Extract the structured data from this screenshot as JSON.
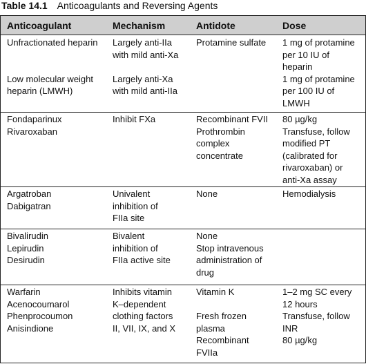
{
  "caption": {
    "number": "Table 14.1",
    "title": "Anticoagulants and Reversing Agents"
  },
  "headers": [
    "Anticoagulant",
    "Mechanism",
    "Antidote",
    "Dose"
  ],
  "rows": [
    {
      "anticoagulant": [
        "Unfractionated heparin",
        "",
        "",
        "Low molecular weight",
        "heparin (LMWH)"
      ],
      "mechanism": [
        "Largely anti-IIa",
        "with mild anti-Xa",
        "",
        "Largely anti-Xa",
        "with mild anti-IIa"
      ],
      "antidote": [
        "Protamine sulfate"
      ],
      "dose": [
        "1 mg of protamine",
        "per 10 IU of",
        "heparin",
        "1 mg of protamine",
        "per 100 IU of",
        "LMWH"
      ]
    },
    {
      "anticoagulant": [
        "Fondaparinux",
        "Rivaroxaban"
      ],
      "mechanism": [
        "Inhibit FXa"
      ],
      "antidote": [
        "Recombinant FVII",
        "Prothrombin",
        "complex",
        "concentrate"
      ],
      "dose": [
        "80 µg/kg",
        "Transfuse, follow",
        "modified PT",
        "(calibrated for",
        "rivaroxaban) or",
        "anti-Xa assay"
      ]
    },
    {
      "anticoagulant": [
        "Argatroban",
        "Dabigatran"
      ],
      "mechanism": [
        "Univalent",
        "inhibition of",
        "FIIa site"
      ],
      "antidote": [
        "None"
      ],
      "dose": [
        "Hemodialysis"
      ]
    },
    {
      "anticoagulant": [
        "Bivalirudin",
        "Lepirudin",
        "Desirudin"
      ],
      "mechanism": [
        "Bivalent",
        "inhibition of",
        "FIIa active site"
      ],
      "antidote": [
        "None",
        "Stop intravenous",
        "administration of",
        "drug"
      ],
      "dose": []
    },
    {
      "anticoagulant": [
        "Warfarin",
        "Acenocoumarol",
        "Phenprocoumon",
        "Anisindione"
      ],
      "mechanism": [
        "Inhibits vitamin",
        "K–dependent",
        "clothing factors",
        "II, VII, IX, and X"
      ],
      "antidote": [
        "Vitamin K",
        "",
        "Fresh frozen",
        "plasma",
        "Recombinant",
        "FVIIa"
      ],
      "dose": [
        "1–2 mg SC every",
        "12 hours",
        "Transfuse, follow",
        "INR",
        "80 µg/kg"
      ]
    }
  ]
}
